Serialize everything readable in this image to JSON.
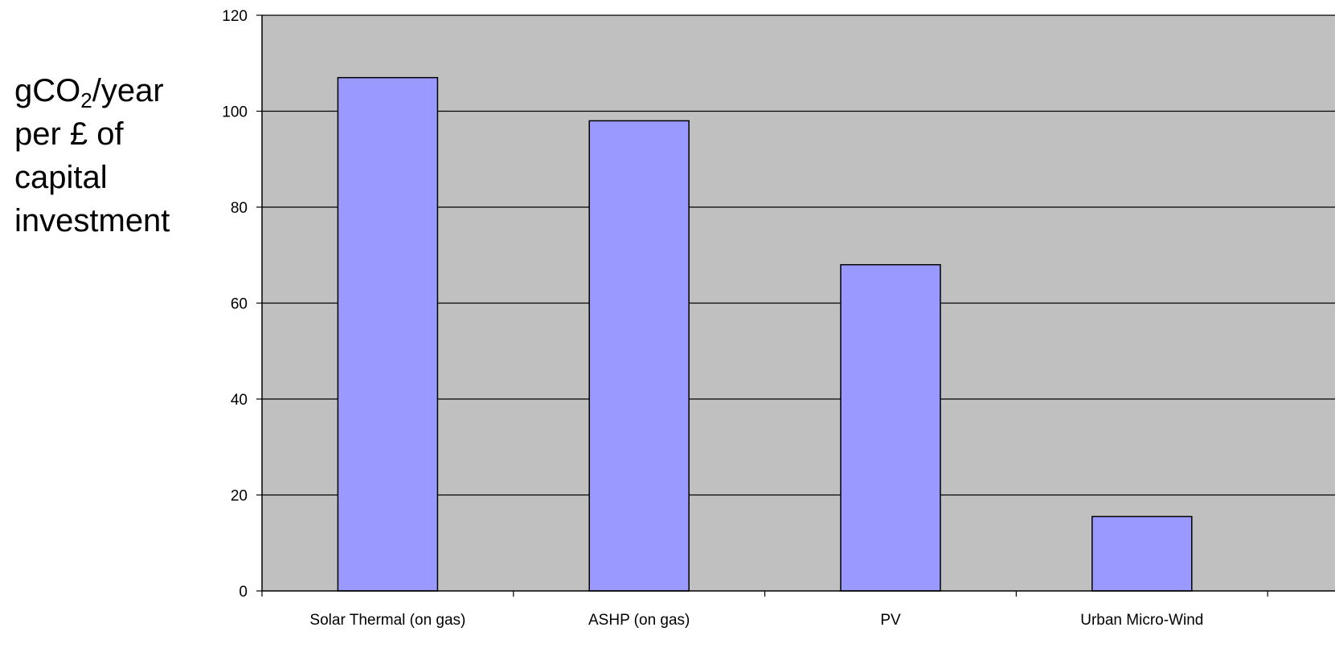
{
  "chart_data": {
    "type": "bar",
    "title": "",
    "ylabel_parts": [
      "gCO",
      "2",
      "/year",
      "per £ of",
      "capital",
      "investment"
    ],
    "xlabel": "",
    "categories": [
      "Solar Thermal (on gas)",
      "ASHP (on gas)",
      "PV",
      "Urban Micro-Wind"
    ],
    "values": [
      107,
      98,
      68,
      15.5
    ],
    "ylim": [
      0,
      120
    ],
    "yticks": [
      0,
      20,
      40,
      60,
      80,
      100,
      120
    ],
    "grid": true,
    "legend": "none",
    "colors": {
      "bar_fill": "#9999ff",
      "bar_stroke": "#000000",
      "plot_background": "#c0c0c0",
      "gridline": "#000000"
    }
  }
}
